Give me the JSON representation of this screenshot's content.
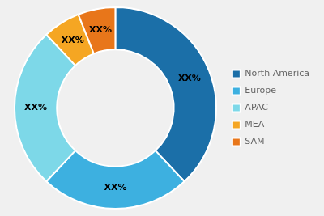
{
  "chart_data": {
    "type": "doughnut",
    "categories": [
      "North America",
      "Europe",
      "APAC",
      "MEA",
      "SAM"
    ],
    "values": [
      38,
      24,
      26,
      6,
      6
    ],
    "value_labels": [
      "XX%",
      "XX%",
      "XX%",
      "XX%",
      "XX%"
    ],
    "colors": [
      "#1b6fa8",
      "#3db0e0",
      "#7dd8e8",
      "#f5a623",
      "#e8761a"
    ],
    "data_labels": true,
    "legend": "right"
  }
}
